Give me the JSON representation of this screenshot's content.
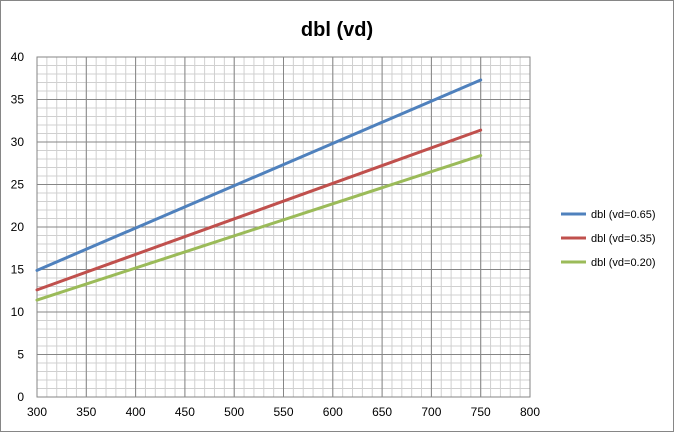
{
  "chart_data": {
    "type": "line",
    "title": "dbl (vd)",
    "xlabel": "",
    "ylabel": "",
    "xlim": [
      300,
      800
    ],
    "ylim": [
      0,
      40
    ],
    "x_ticks": [
      300,
      350,
      400,
      450,
      500,
      550,
      600,
      650,
      700,
      750,
      800
    ],
    "y_ticks": [
      0,
      5,
      10,
      15,
      20,
      25,
      30,
      35,
      40
    ],
    "grid": true,
    "minor_grid": true,
    "legend_position": "right",
    "series": [
      {
        "name": "dbl (vd=0.65)",
        "color": "#4F81BD",
        "x": [
          300,
          750
        ],
        "y": [
          14.9,
          37.3
        ]
      },
      {
        "name": "dbl (vd=0.35)",
        "color": "#C0504D",
        "x": [
          300,
          750
        ],
        "y": [
          12.6,
          31.4
        ]
      },
      {
        "name": "dbl (vd=0.20)",
        "color": "#9BBB59",
        "x": [
          300,
          750
        ],
        "y": [
          11.4,
          28.4
        ]
      }
    ]
  }
}
